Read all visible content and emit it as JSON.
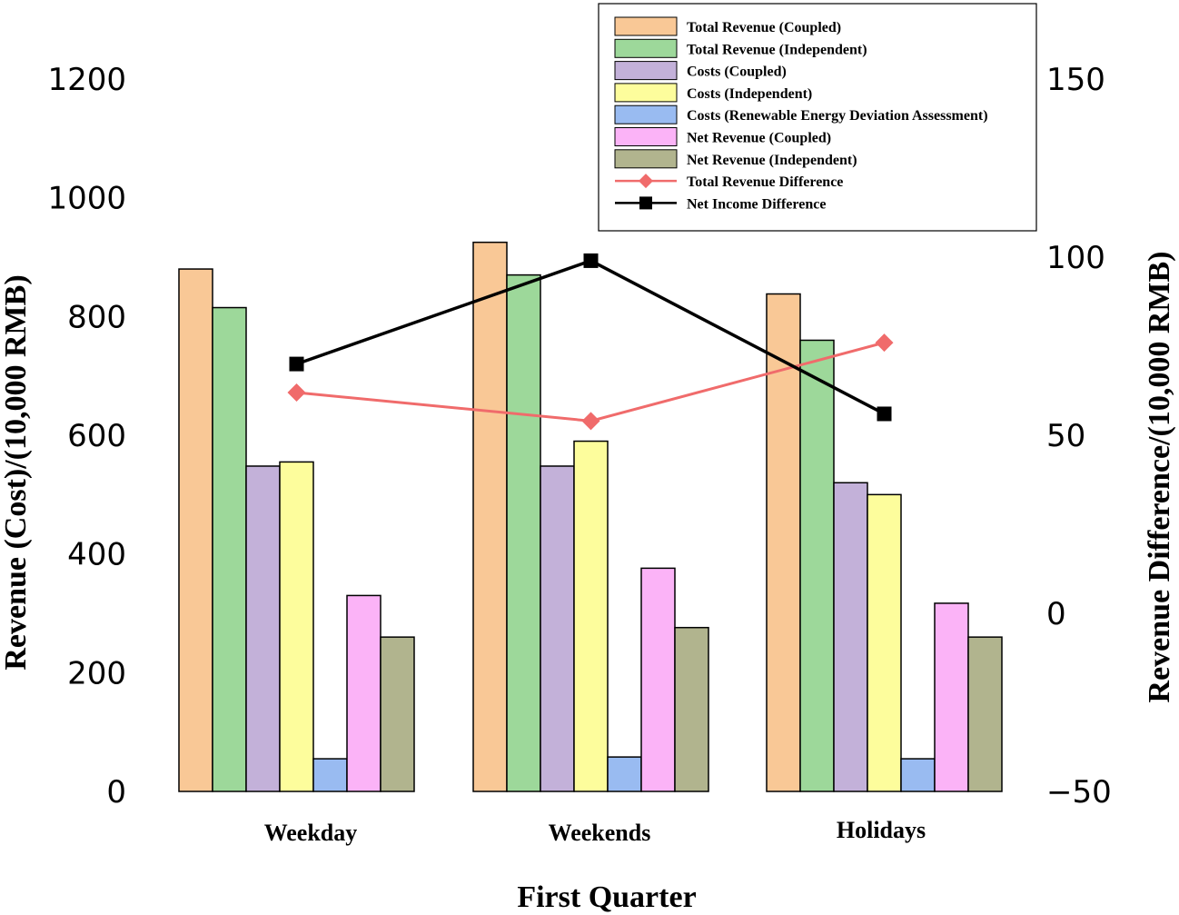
{
  "chart_data": {
    "type": "bar",
    "title": "",
    "xlabel": "First Quarter",
    "ylabel": "Revenue (Cost)/(10,000 RMB)",
    "y2label": "Revenue Difference/(10,000 RMB)",
    "ylim": [
      0,
      1200
    ],
    "y2lim": [
      -50,
      150
    ],
    "y_ticks": [
      "0",
      "200",
      "400",
      "600",
      "800",
      "1000",
      "1200"
    ],
    "y2_ticks": [
      "−50",
      "0",
      "50",
      "100",
      "150"
    ],
    "categories": [
      "Weekday",
      "Weekends",
      "Holidays"
    ],
    "series": [
      {
        "name": "Total Revenue (Coupled)",
        "color": "#F9C896",
        "values": [
          880,
          925,
          838
        ]
      },
      {
        "name": "Total Revenue (Independent)",
        "color": "#9DD89A",
        "values": [
          815,
          870,
          760
        ]
      },
      {
        "name": "Costs (Coupled)",
        "color": "#C3B1D9",
        "values": [
          548,
          548,
          520
        ]
      },
      {
        "name": "Costs (Independent)",
        "color": "#FDFD9C",
        "values": [
          555,
          590,
          500
        ]
      },
      {
        "name": "Costs (Renewable Energy Deviation Assessment)",
        "color": "#99BBF1",
        "values": [
          55,
          58,
          55
        ]
      },
      {
        "name": "Net Revenue (Coupled)",
        "color": "#FBB3F7",
        "values": [
          330,
          376,
          317
        ]
      },
      {
        "name": "Net Revenue (Independent)",
        "color": "#B1B48E",
        "values": [
          260,
          276,
          260
        ]
      }
    ],
    "line_series": [
      {
        "name": "Total Revenue Difference",
        "color": "#F06B6B",
        "marker": "diamond",
        "values": [
          62,
          54,
          76
        ]
      },
      {
        "name": "Net Income Difference",
        "color": "#000000",
        "marker": "square",
        "values": [
          70,
          99,
          56
        ]
      }
    ],
    "legend_position": "top-right"
  }
}
